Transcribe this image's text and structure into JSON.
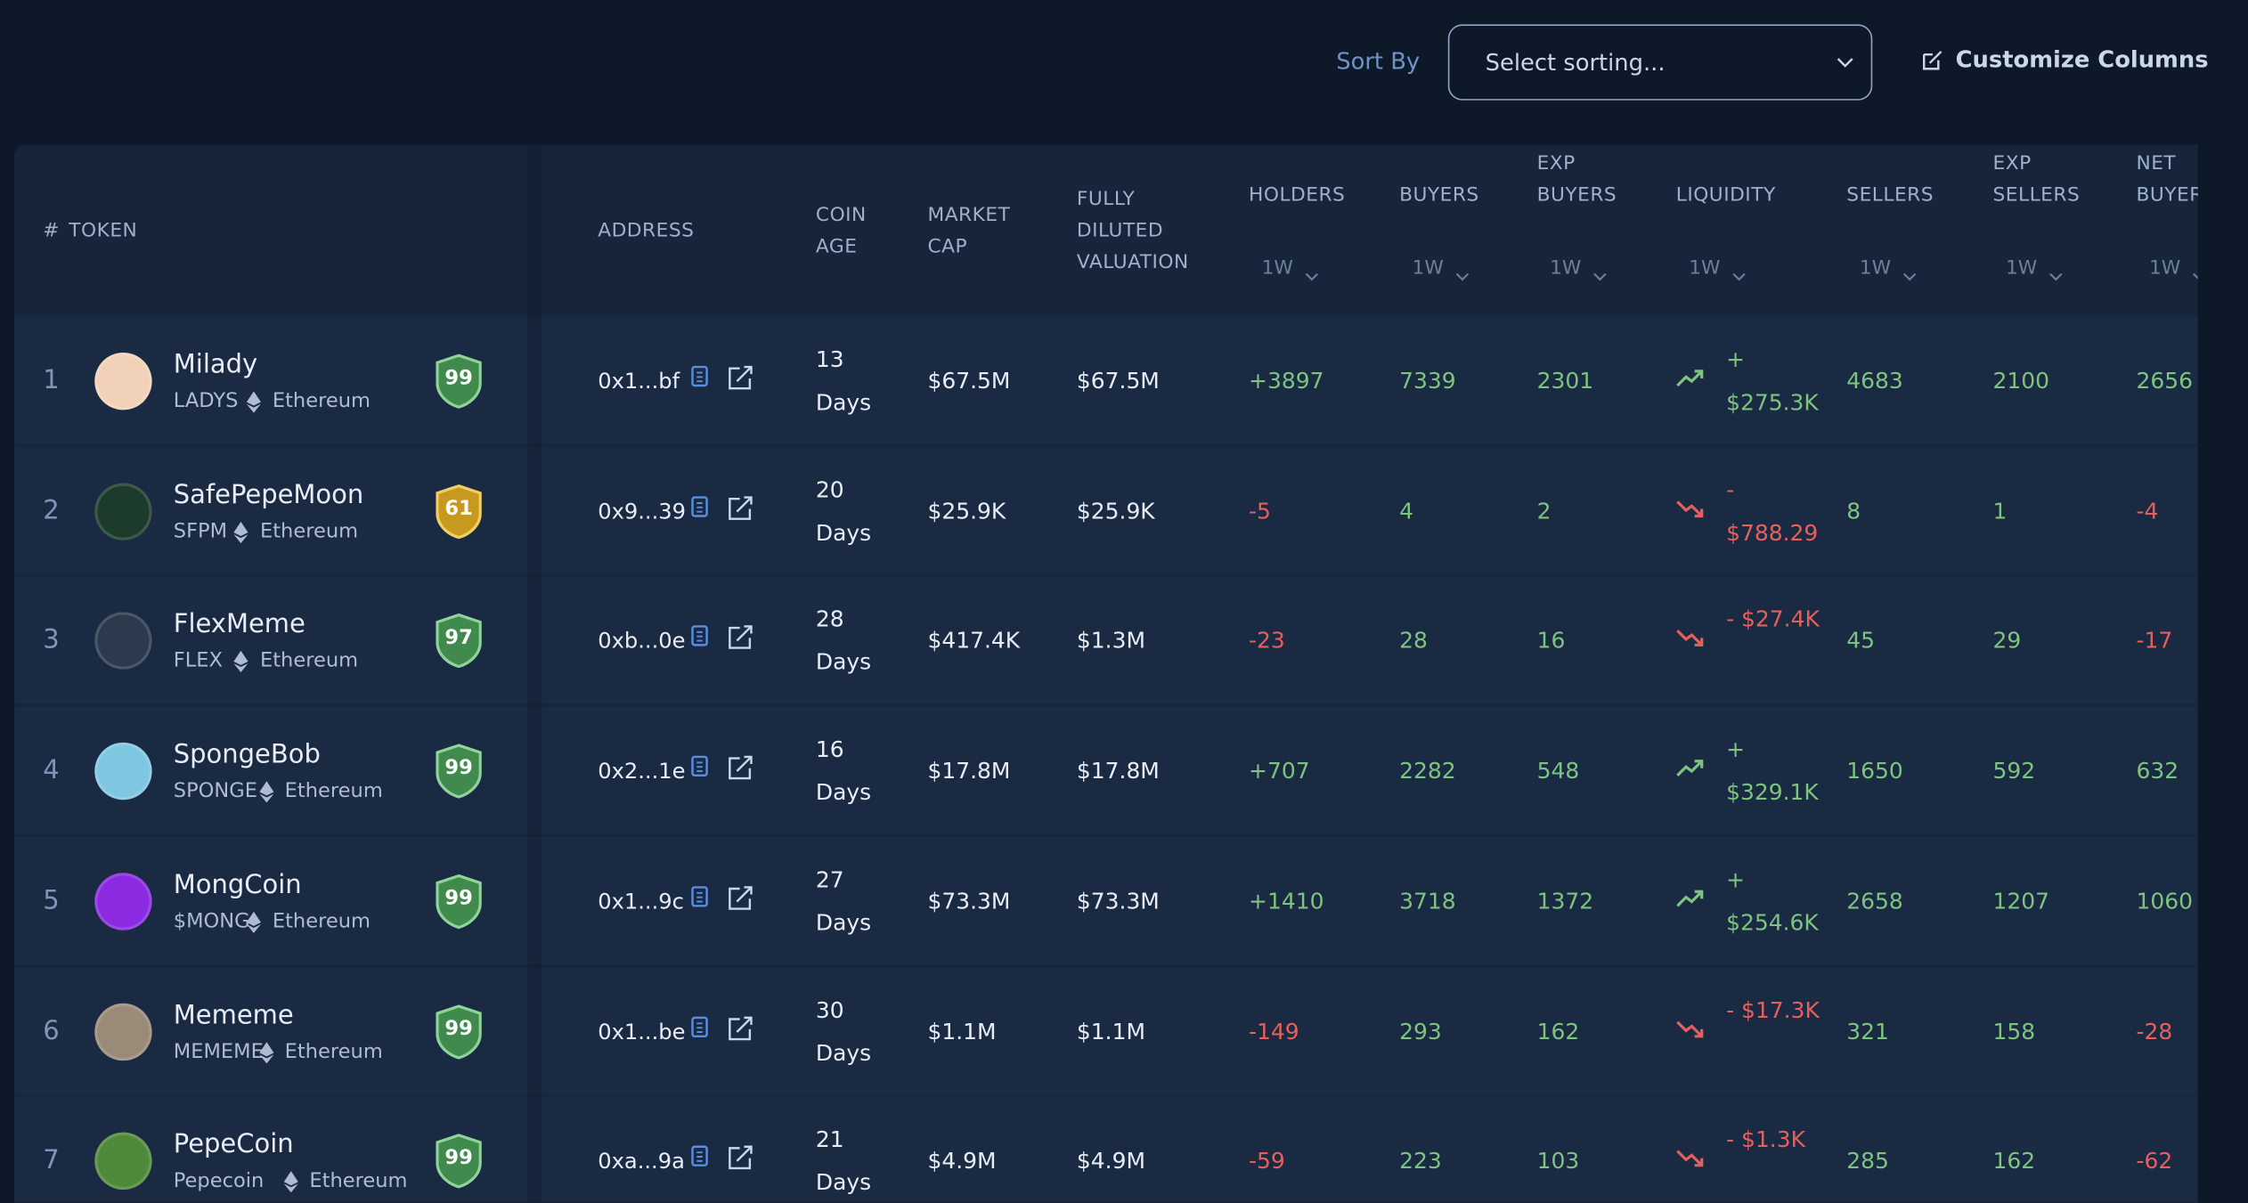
{
  "toolbar": {
    "sort_label": "Sort By",
    "sort_placeholder": "Select sorting...",
    "customize": "Customize Columns"
  },
  "table": {
    "columns": [
      {
        "label": "#"
      },
      {
        "label": "TOKEN"
      },
      {
        "label": "ADDRESS"
      },
      {
        "label": "COIN AGE"
      },
      {
        "label": "MARKET CAP"
      },
      {
        "label": "FULLY DILUTED VALUATION"
      },
      {
        "label": "HOLDERS",
        "period": "1W"
      },
      {
        "label": "BUYERS",
        "period": "1W"
      },
      {
        "label": "EXP BUYERS",
        "period": "1W"
      },
      {
        "label": "LIQUIDITY",
        "period": "1W"
      },
      {
        "label": "SELLERS",
        "period": "1W"
      },
      {
        "label": "EXP SELLERS",
        "period": "1W"
      },
      {
        "label": "NET BUYERS",
        "period": "1W"
      }
    ],
    "rows": [
      {
        "rank": 1,
        "name": "Milady",
        "symbol": "LADYS",
        "chain": "Ethereum",
        "score": 99,
        "address": "0x1...bf",
        "age": "13 Days",
        "market_cap": "$67.5M",
        "fdv": "$67.5M",
        "holders": "+3897",
        "buyers": 7339,
        "exp_buyers": 2301,
        "liquidity": "+ $275.3K",
        "sellers": 4683,
        "exp_sellers": 2100,
        "net_buyers": 2656
      },
      {
        "rank": 2,
        "name": "SafePepeMoon",
        "symbol": "SFPM",
        "chain": "Ethereum",
        "score": 61,
        "address": "0x9...39",
        "age": "20 Days",
        "market_cap": "$25.9K",
        "fdv": "$25.9K",
        "holders": "-5",
        "buyers": 4,
        "exp_buyers": 2,
        "liquidity": "- $788.29",
        "sellers": 8,
        "exp_sellers": 1,
        "net_buyers": -4
      },
      {
        "rank": 3,
        "name": "FlexMeme",
        "symbol": "FLEX",
        "chain": "Ethereum",
        "score": 97,
        "address": "0xb...0e",
        "age": "28 Days",
        "market_cap": "$417.4K",
        "fdv": "$1.3M",
        "holders": "-23",
        "buyers": 28,
        "exp_buyers": 16,
        "liquidity": "- $27.4K",
        "sellers": 45,
        "exp_sellers": 29,
        "net_buyers": -17
      },
      {
        "rank": 4,
        "name": "SpongeBob",
        "symbol": "SPONGE",
        "chain": "Ethereum",
        "score": 99,
        "address": "0x2...1e",
        "age": "16 Days",
        "market_cap": "$17.8M",
        "fdv": "$17.8M",
        "holders": "+707",
        "buyers": 2282,
        "exp_buyers": 548,
        "liquidity": "+ $329.1K",
        "sellers": 1650,
        "exp_sellers": 592,
        "net_buyers": 632
      },
      {
        "rank": 5,
        "name": "MongCoin",
        "symbol": "$MONG",
        "chain": "Ethereum",
        "score": 99,
        "address": "0x1...9c",
        "age": "27 Days",
        "market_cap": "$73.3M",
        "fdv": "$73.3M",
        "holders": "+1410",
        "buyers": 3718,
        "exp_buyers": 1372,
        "liquidity": "+ $254.6K",
        "sellers": 2658,
        "exp_sellers": 1207,
        "net_buyers": 1060
      },
      {
        "rank": 6,
        "name": "Mememe",
        "symbol": "MEMEME",
        "chain": "Ethereum",
        "score": 99,
        "address": "0x1...be",
        "age": "30 Days",
        "market_cap": "$1.1M",
        "fdv": "$1.1M",
        "holders": "-149",
        "buyers": 293,
        "exp_buyers": 162,
        "liquidity": "- $17.3K",
        "sellers": 321,
        "exp_sellers": 158,
        "net_buyers": -28
      },
      {
        "rank": 7,
        "name": "PepeCoin",
        "symbol": "Pepecoin",
        "chain": "Ethereum",
        "score": 99,
        "address": "0xa...9a",
        "age": "21 Days",
        "market_cap": "$4.9M",
        "fdv": "$4.9M",
        "holders": "-59",
        "buyers": 223,
        "exp_buyers": 103,
        "liquidity": "- $1.3K",
        "sellers": 285,
        "exp_sellers": 162,
        "net_buyers": -62
      }
    ]
  }
}
